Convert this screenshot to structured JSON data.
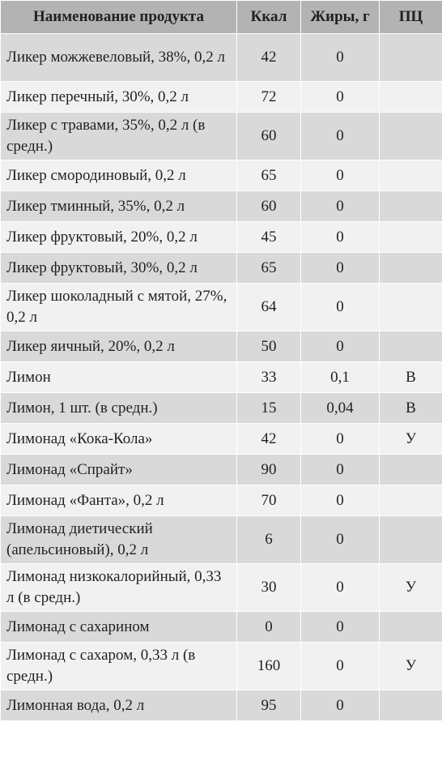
{
  "header": {
    "name": "Наименование продукта",
    "kcal": "Ккал",
    "fat": "Жиры, г",
    "pc": "ПЦ"
  },
  "rows": [
    {
      "name": "Ликер можжевеловый, 38%, 0,2 л",
      "kcal": "42",
      "fat": "0",
      "pc": ""
    },
    {
      "name": "Ликер перечный, 30%, 0,2 л",
      "kcal": "72",
      "fat": "0",
      "pc": ""
    },
    {
      "name": "Ликер с травами, 35%, 0,2 л (в средн.)",
      "kcal": "60",
      "fat": "0",
      "pc": ""
    },
    {
      "name": "Ликер смородиновый, 0,2 л",
      "kcal": "65",
      "fat": "0",
      "pc": ""
    },
    {
      "name": "Ликер тминный, 35%, 0,2 л",
      "kcal": "60",
      "fat": "0",
      "pc": ""
    },
    {
      "name": "Ликер фруктовый, 20%, 0,2 л",
      "kcal": "45",
      "fat": "0",
      "pc": ""
    },
    {
      "name": "Ликер фруктовый, 30%, 0,2 л",
      "kcal": "65",
      "fat": "0",
      "pc": ""
    },
    {
      "name": "Ликер шоколадный с мятой, 27%, 0,2 л",
      "kcal": "64",
      "fat": "0",
      "pc": ""
    },
    {
      "name": "Ликер яичный, 20%, 0,2 л",
      "kcal": "50",
      "fat": "0",
      "pc": ""
    },
    {
      "name": "Лимон",
      "kcal": "33",
      "fat": "0,1",
      "pc": "В"
    },
    {
      "name": "Лимон, 1 шт. (в средн.)",
      "kcal": "15",
      "fat": "0,04",
      "pc": "В"
    },
    {
      "name": "Лимонад «Кока-Кола»",
      "kcal": "42",
      "fat": "0",
      "pc": "У"
    },
    {
      "name": "Лимонад «Спрайт»",
      "kcal": "90",
      "fat": "0",
      "pc": ""
    },
    {
      "name": "Лимонад «Фанта», 0,2 л",
      "kcal": "70",
      "fat": "0",
      "pc": ""
    },
    {
      "name": "Лимонад диетический (апельсиновый), 0,2 л",
      "kcal": "6",
      "fat": "0",
      "pc": ""
    },
    {
      "name": "Лимонад низкокалорийный, 0,33 л (в средн.)",
      "kcal": "30",
      "fat": "0",
      "pc": "У"
    },
    {
      "name": "Лимонад с сахарином",
      "kcal": "0",
      "fat": "0",
      "pc": ""
    },
    {
      "name": "Лимонад с сахаром, 0,33 л (в средн.)",
      "kcal": "160",
      "fat": "0",
      "pc": "У"
    },
    {
      "name": "Лимонная вода, 0,2 л",
      "kcal": "95",
      "fat": "0",
      "pc": ""
    }
  ]
}
